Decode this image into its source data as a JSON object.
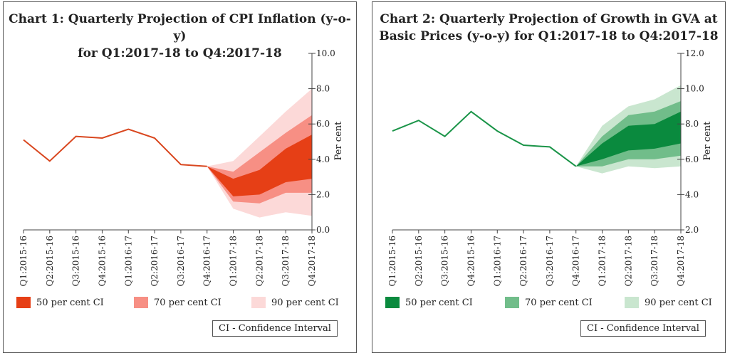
{
  "chart_data": [
    {
      "type": "line",
      "title_line1": "Chart 1: Quarterly Projection of CPI Inflation (y-o-y)",
      "title_line2": "for Q1:2017-18 to Q4:2017-18",
      "ylabel": "Per cent",
      "ylim": [
        0,
        10
      ],
      "yticks": [
        "0.0",
        "2.0",
        "4.0",
        "6.0",
        "8.0",
        "10.0"
      ],
      "yaxis_position": "right",
      "categories": [
        "Q1:2015-16",
        "Q2:2015-16",
        "Q3:2015-16",
        "Q4:2015-16",
        "Q1:2016-17",
        "Q2:2016-17",
        "Q3:2016-17",
        "Q4:2016-17",
        "Q1:2017-18",
        "Q2:2017-18",
        "Q3:2017-18",
        "Q4:2017-18"
      ],
      "actual": [
        5.1,
        3.9,
        5.3,
        5.2,
        5.7,
        5.2,
        3.7,
        3.6
      ],
      "bands": [
        {
          "name": "90 per cent CI",
          "lower": [
            3.6,
            1.2,
            0.7,
            1.0,
            0.8
          ],
          "upper": [
            3.6,
            3.9,
            5.3,
            6.7,
            8.0
          ]
        },
        {
          "name": "70 per cent CI",
          "lower": [
            3.6,
            1.6,
            1.5,
            2.1,
            2.1
          ],
          "upper": [
            3.6,
            3.3,
            4.4,
            5.5,
            6.5
          ]
        },
        {
          "name": "50 per cent CI",
          "lower": [
            3.6,
            1.9,
            2.0,
            2.7,
            2.9
          ],
          "upper": [
            3.6,
            2.9,
            3.4,
            4.6,
            5.4
          ]
        }
      ],
      "colors": {
        "line": "#d9471f",
        "ci50": "#e63f16",
        "ci70": "#f78f84",
        "ci90": "#fcd9d8"
      },
      "legend": [
        "50 per cent CI",
        "70 per cent CI",
        "90 per cent CI"
      ],
      "note": "CI - Confidence Interval"
    },
    {
      "type": "line",
      "title_line1": "Chart 2: Quarterly Projection of Growth in GVA at",
      "title_line2": "Basic Prices (y-o-y) for Q1:2017-18 to Q4:2017-18",
      "ylabel": "Per cent",
      "ylim": [
        2,
        12
      ],
      "yticks": [
        "2.0",
        "4.0",
        "6.0",
        "8.0",
        "10.0",
        "12.0"
      ],
      "yaxis_position": "right",
      "categories": [
        "Q1:2015-16",
        "Q2:2015-16",
        "Q3:2015-16",
        "Q4:2015-16",
        "Q1:2016-17",
        "Q2:2016-17",
        "Q3:2016-17",
        "Q4:2016-17",
        "Q1:2017-18",
        "Q2:2017-18",
        "Q3:2017-18",
        "Q4:2017-18"
      ],
      "actual": [
        7.6,
        8.2,
        7.3,
        8.7,
        7.6,
        6.8,
        6.7,
        5.6
      ],
      "bands": [
        {
          "name": "90 per cent CI",
          "lower": [
            5.6,
            5.2,
            5.6,
            5.5,
            5.6
          ],
          "upper": [
            5.6,
            7.9,
            9.0,
            9.4,
            10.2
          ]
        },
        {
          "name": "70 per cent CI",
          "lower": [
            5.6,
            5.6,
            6.0,
            6.0,
            6.2
          ],
          "upper": [
            5.6,
            7.3,
            8.5,
            8.7,
            9.3
          ]
        },
        {
          "name": "50 per cent CI",
          "lower": [
            5.6,
            6.0,
            6.5,
            6.6,
            6.9
          ],
          "upper": [
            5.6,
            6.9,
            7.9,
            8.0,
            8.7
          ]
        }
      ],
      "colors": {
        "line": "#1a9448",
        "ci50": "#0a8a3e",
        "ci70": "#71bd8a",
        "ci90": "#c9e6cf"
      },
      "legend": [
        "50 per cent CI",
        "70 per cent CI",
        "90 per cent CI"
      ],
      "note": "CI - Confidence Interval"
    }
  ]
}
